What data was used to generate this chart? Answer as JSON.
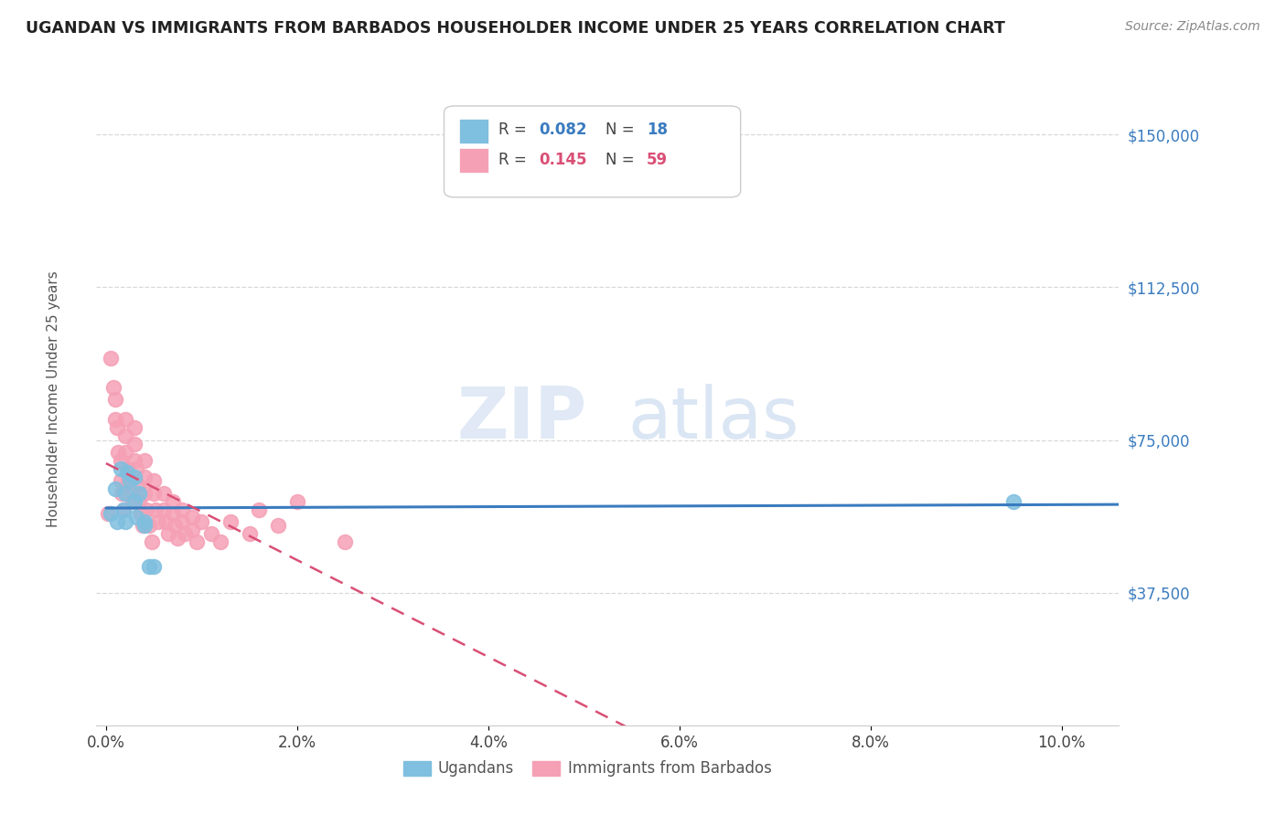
{
  "title": "UGANDAN VS IMMIGRANTS FROM BARBADOS HOUSEHOLDER INCOME UNDER 25 YEARS CORRELATION CHART",
  "source": "Source: ZipAtlas.com",
  "ylabel": "Householder Income Under 25 years",
  "xlabel_ticks": [
    "0.0%",
    "2.0%",
    "4.0%",
    "6.0%",
    "8.0%",
    "10.0%"
  ],
  "xlabel_vals": [
    0.0,
    0.02,
    0.04,
    0.06,
    0.08,
    0.1
  ],
  "ytick_labels": [
    "$37,500",
    "$75,000",
    "$112,500",
    "$150,000"
  ],
  "ytick_vals": [
    37500,
    75000,
    112500,
    150000
  ],
  "xlim": [
    -0.001,
    0.106
  ],
  "ylim": [
    5000,
    165000
  ],
  "ugandan_R": 0.082,
  "ugandan_N": 18,
  "barbados_R": 0.145,
  "barbados_N": 59,
  "ugandan_color": "#7fbfdf",
  "barbados_color": "#f5a0b5",
  "trendline_color_ugandan": "#3a7bbf",
  "trendline_color_barbados": "#d94f75",
  "ugandans_x": [
    0.0005,
    0.001,
    0.0012,
    0.0015,
    0.0018,
    0.002,
    0.002,
    0.0022,
    0.0025,
    0.003,
    0.003,
    0.0032,
    0.0035,
    0.004,
    0.004,
    0.0045,
    0.005,
    0.095
  ],
  "ugandans_y": [
    57000,
    63000,
    55000,
    68000,
    58000,
    62000,
    55000,
    67000,
    65000,
    66000,
    60000,
    56000,
    62000,
    54000,
    55000,
    44000,
    44000,
    60000
  ],
  "barbados_x": [
    0.0002,
    0.0005,
    0.0008,
    0.001,
    0.001,
    0.0012,
    0.0013,
    0.0015,
    0.0015,
    0.0016,
    0.0018,
    0.002,
    0.002,
    0.002,
    0.0022,
    0.0023,
    0.0025,
    0.0028,
    0.003,
    0.003,
    0.003,
    0.0032,
    0.0034,
    0.0035,
    0.0036,
    0.0038,
    0.004,
    0.004,
    0.004,
    0.0042,
    0.0045,
    0.0048,
    0.005,
    0.005,
    0.0052,
    0.0055,
    0.006,
    0.006,
    0.0062,
    0.0065,
    0.007,
    0.007,
    0.0072,
    0.0075,
    0.008,
    0.008,
    0.0082,
    0.009,
    0.009,
    0.0095,
    0.01,
    0.011,
    0.012,
    0.013,
    0.015,
    0.016,
    0.018,
    0.02,
    0.025
  ],
  "barbados_y": [
    57000,
    95000,
    88000,
    85000,
    80000,
    78000,
    72000,
    70000,
    65000,
    62000,
    58000,
    80000,
    76000,
    72000,
    68000,
    65000,
    63000,
    60000,
    78000,
    74000,
    70000,
    68000,
    64000,
    60000,
    57000,
    54000,
    70000,
    66000,
    62000,
    58000,
    54000,
    50000,
    65000,
    62000,
    58000,
    55000,
    62000,
    58000,
    55000,
    52000,
    60000,
    57000,
    54000,
    51000,
    58000,
    55000,
    52000,
    56000,
    53000,
    50000,
    55000,
    52000,
    50000,
    55000,
    52000,
    58000,
    54000,
    60000,
    50000
  ],
  "watermark_zip": "ZIP",
  "watermark_atlas": "atlas",
  "background_color": "#ffffff",
  "grid_color": "#d8d8d8"
}
